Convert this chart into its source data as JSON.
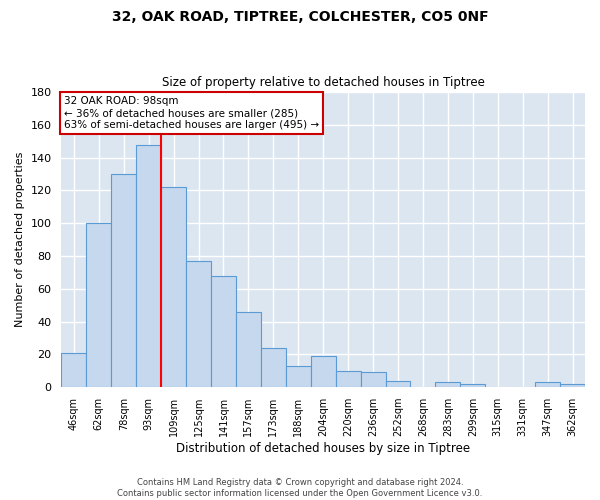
{
  "title": "32, OAK ROAD, TIPTREE, COLCHESTER, CO5 0NF",
  "subtitle": "Size of property relative to detached houses in Tiptree",
  "xlabel": "Distribution of detached houses by size in Tiptree",
  "ylabel": "Number of detached properties",
  "bar_labels": [
    "46sqm",
    "62sqm",
    "78sqm",
    "93sqm",
    "109sqm",
    "125sqm",
    "141sqm",
    "157sqm",
    "173sqm",
    "188sqm",
    "204sqm",
    "220sqm",
    "236sqm",
    "252sqm",
    "268sqm",
    "283sqm",
    "299sqm",
    "315sqm",
    "331sqm",
    "347sqm",
    "362sqm"
  ],
  "bar_values": [
    21,
    100,
    130,
    148,
    122,
    77,
    68,
    46,
    24,
    13,
    19,
    10,
    9,
    4,
    0,
    3,
    2,
    0,
    0,
    3,
    2
  ],
  "bar_color": "#c5d8ed",
  "bar_edge_color": "#5b9bd5",
  "plot_bg_color": "#dce6f1",
  "fig_bg_color": "#ffffff",
  "grid_color": "#ffffff",
  "ylim": [
    0,
    180
  ],
  "yticks": [
    0,
    20,
    40,
    60,
    80,
    100,
    120,
    140,
    160,
    180
  ],
  "red_line_x": 3.5,
  "annotation_line1": "32 OAK ROAD: 98sqm",
  "annotation_line2": "← 36% of detached houses are smaller (285)",
  "annotation_line3": "63% of semi-detached houses are larger (495) →",
  "annotation_box_color": "#ffffff",
  "annotation_border_color": "#cc0000",
  "footer_line1": "Contains HM Land Registry data © Crown copyright and database right 2024.",
  "footer_line2": "Contains public sector information licensed under the Open Government Licence v3.0."
}
